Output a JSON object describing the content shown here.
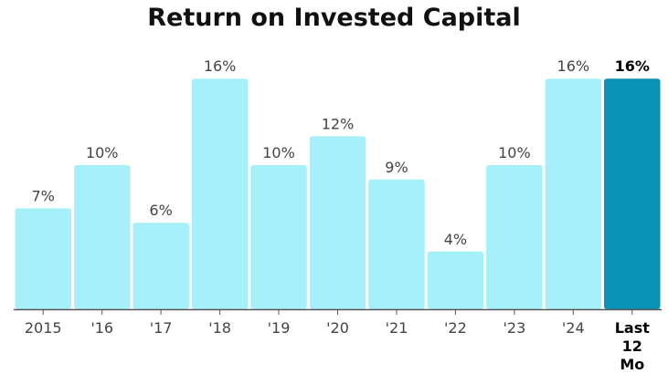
{
  "chart_data": {
    "type": "bar",
    "title": "Return on Invested Capital",
    "categories": [
      "2015",
      "'16",
      "'17",
      "'18",
      "'19",
      "'20",
      "'21",
      "'22",
      "'23",
      "'24",
      "Last 12 Mo"
    ],
    "category_lines": [
      [
        "2015"
      ],
      [
        "'16"
      ],
      [
        "'17"
      ],
      [
        "'18"
      ],
      [
        "'19"
      ],
      [
        "'20"
      ],
      [
        "'21"
      ],
      [
        "'22"
      ],
      [
        "'23"
      ],
      [
        "'24"
      ],
      [
        "Last",
        "12",
        "Mo"
      ]
    ],
    "values": [
      7,
      10,
      6,
      16,
      10,
      12,
      9,
      4,
      10,
      16,
      16
    ],
    "value_labels": [
      "7%",
      "10%",
      "6%",
      "16%",
      "10%",
      "12%",
      "9%",
      "4%",
      "10%",
      "16%",
      "16%"
    ],
    "highlight_index": 10,
    "xlabel": "",
    "ylabel": "",
    "ylim": [
      0,
      17
    ],
    "grid": false,
    "colors": {
      "bar": "#A6F0FA",
      "highlight": "#0A93B4",
      "axis": "#555555"
    }
  }
}
